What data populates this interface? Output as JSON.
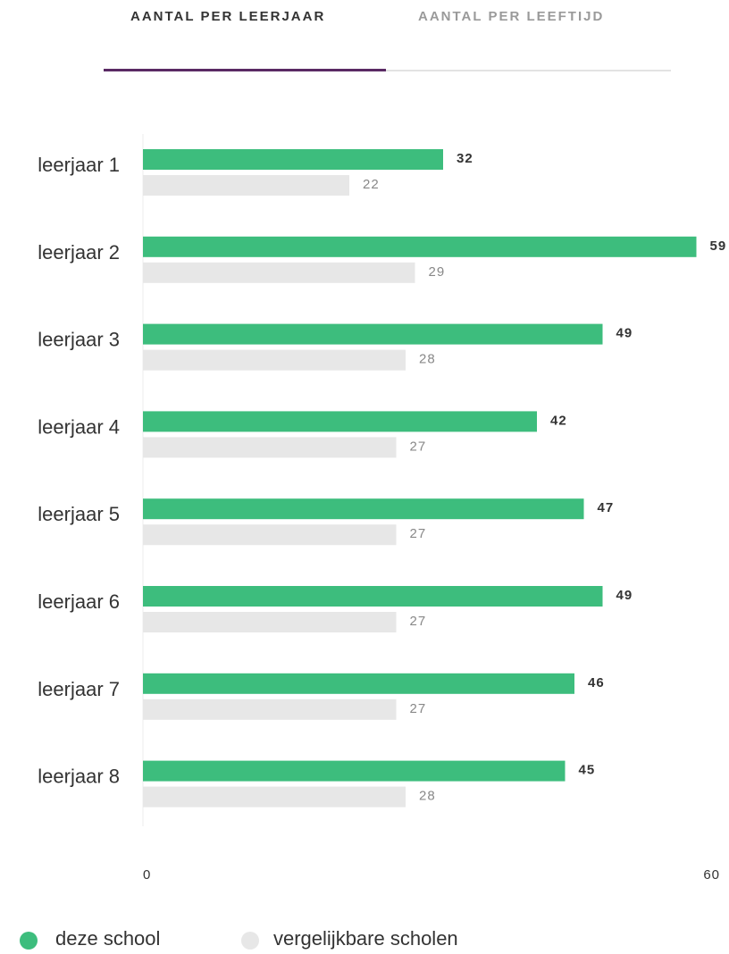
{
  "tabs": [
    {
      "label": "AANTAL PER LEERJAAR",
      "active": true
    },
    {
      "label": "AANTAL PER LEEFTIJD",
      "active": false
    }
  ],
  "colors": {
    "school": "#3dbd7d",
    "comparable": "#e7e7e7",
    "tab_indicator": "#5a2a64"
  },
  "chart_data": {
    "type": "bar",
    "orientation": "horizontal",
    "categories": [
      "leerjaar 1",
      "leerjaar 2",
      "leerjaar 3",
      "leerjaar 4",
      "leerjaar 5",
      "leerjaar 6",
      "leerjaar 7",
      "leerjaar 8"
    ],
    "series": [
      {
        "name": "deze school",
        "values": [
          32,
          59,
          49,
          42,
          47,
          49,
          46,
          45
        ]
      },
      {
        "name": "vergelijkbare scholen",
        "values": [
          22,
          29,
          28,
          27,
          27,
          27,
          27,
          28
        ]
      }
    ],
    "xlim": [
      0,
      60
    ],
    "ticks": [
      "0",
      "60"
    ],
    "grid": false,
    "legend_position": "bottom-left"
  },
  "legend": [
    {
      "label": "deze school",
      "icon": "green-dot-icon"
    },
    {
      "label": "vergelijkbare scholen",
      "icon": "grey-dot-icon"
    }
  ]
}
